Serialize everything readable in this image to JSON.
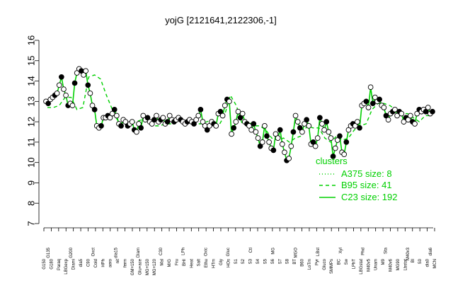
{
  "chart_data": {
    "type": "line",
    "title": "yojG [2121641,2122306,-1]",
    "xlabel": "",
    "ylabel": "",
    "ylim": [
      7,
      16
    ],
    "yticks": [
      7,
      8,
      9,
      10,
      11,
      12,
      13,
      14,
      15,
      16
    ],
    "grid": false,
    "legend": {
      "title": "clusters",
      "placement": "inside-bottom-right",
      "entries": [
        {
          "label": "A375 size: 8",
          "style": "dotted",
          "color": "#00d000"
        },
        {
          "label": "B95 size: 41",
          "style": "dashed",
          "color": "#00d000"
        },
        {
          "label": "C23 size: 192",
          "style": "solid",
          "color": "#00d000"
        }
      ]
    },
    "x_tick_labels": [
      "G150",
      "G180",
      "Paraq",
      "LBGexp",
      "Diami",
      "dia5",
      "C90",
      "Cold",
      "HPh",
      "aero",
      "nit",
      "ferm",
      "GM+150",
      "Glu+ace",
      "MG+150",
      "MG+120",
      "Mal",
      "M/G",
      "Fru",
      "BHI",
      "Heat",
      "Salt",
      "Ethu",
      "HTm",
      "Gly",
      "HOs",
      "S1",
      "S2",
      "S3",
      "S4",
      "S5",
      "S6",
      "S7",
      "S8",
      "BT",
      "B60",
      "LoTm",
      "Pyr",
      "Gluco",
      "SMMPs",
      "BC",
      "Sw",
      "LPhT",
      "LBGstat",
      "M40v5",
      "Unam",
      "M9",
      "M40v6",
      "MG90",
      "Lbstat",
      "Bl",
      "S0",
      "dia0",
      "MCN"
    ],
    "x_tick_labels_upper": [
      "G135",
      "G200",
      "Oxct",
      "dia15",
      "Diam",
      "C30",
      "LPh",
      "Oxic",
      "Gluc",
      "Ctl",
      "MG",
      "MGO",
      "LBst",
      "Xyl",
      "Phd",
      "Sta",
      "M40v3",
      "dia6"
    ],
    "series": [
      {
        "name": "",
        "values": [
          13.0,
          12.9,
          13.1,
          13.2,
          13.3,
          13.4,
          13.8,
          14.2,
          13.6,
          13.3,
          12.8,
          12.9,
          12.8,
          13.9,
          14.4,
          14.6,
          14.5,
          14.3,
          14.5,
          13.8,
          13.4,
          12.8,
          12.6,
          11.8,
          11.7,
          11.8,
          12.2,
          12.2,
          12.3,
          12.2,
          12.4,
          12.6,
          12.3,
          11.9,
          11.8,
          12.1,
          12.0,
          11.8,
          11.9,
          12.0,
          11.6,
          11.5,
          11.9,
          11.7,
          12.3,
          12.1,
          12.2,
          12.0,
          11.9,
          12.1,
          12.3,
          12.0,
          12.1,
          12.2,
          11.9,
          12.0,
          12.3,
          12.1,
          12.0,
          12.1,
          12.2,
          12.1,
          12.0,
          11.9,
          12.0,
          12.1,
          12.0,
          11.9,
          12.1,
          12.3,
          12.6,
          12.0,
          11.8,
          11.6,
          11.8,
          12.0,
          11.9,
          11.8,
          12.4,
          12.5,
          12.3,
          12.8,
          13.1,
          13.0,
          11.4,
          11.7,
          12.0,
          12.5,
          12.2,
          12.4,
          12.0,
          11.9,
          11.8,
          11.6,
          11.9,
          11.5,
          11.2,
          10.8,
          11.0,
          11.8,
          11.3,
          11.0,
          10.7,
          10.6,
          11.4,
          11.2,
          11.6,
          10.9,
          10.5,
          10.1,
          10.2,
          10.8,
          11.5,
          12.3,
          12.0,
          11.7,
          11.5,
          11.9,
          12.1,
          11.8,
          10.9,
          11.0,
          10.8,
          11.2,
          12.2,
          11.9,
          11.6,
          12.0,
          11.5,
          11.2,
          10.3,
          10.7,
          11.1,
          11.3,
          10.5,
          10.4,
          11.0,
          11.6,
          11.8,
          11.9,
          11.8,
          12.0,
          11.7,
          12.8,
          12.9,
          13.0,
          12.7,
          13.7,
          12.9,
          13.2,
          13.0,
          13.1,
          12.8,
          12.7,
          12.3,
          12.1,
          12.4,
          12.5,
          12.6,
          12.3,
          12.5,
          12.4,
          12.0,
          12.2,
          12.1,
          12.3,
          12.0,
          11.9,
          12.4,
          12.6,
          12.5,
          12.6,
          12.5,
          12.7,
          12.4,
          12.5
        ]
      }
    ],
    "dashed_mean": [
      12.7,
      12.7,
      12.8,
      13.2,
      13.2,
      12.6,
      12.7,
      14.2,
      14.3,
      14.1,
      13.3,
      12.6,
      12.0,
      11.9,
      11.9,
      12.0,
      12.1,
      12.0,
      11.8,
      11.8,
      11.9,
      11.9,
      12.0,
      12.0,
      12.0,
      11.9,
      11.9,
      12.0,
      12.1,
      11.8,
      12.3,
      13.3,
      12.8,
      11.9,
      12.0,
      11.8,
      11.8,
      11.6,
      11.2,
      11.1,
      11.2,
      11.0,
      11.2,
      11.3,
      11.8,
      11.7,
      11.7,
      11.2,
      11.0,
      11.3,
      11.1,
      11.2,
      11.6,
      11.8,
      11.9,
      12.6,
      12.9,
      12.9,
      12.8,
      12.6,
      12.4,
      12.4,
      12.2,
      12.0,
      12.3,
      12.3
    ]
  }
}
